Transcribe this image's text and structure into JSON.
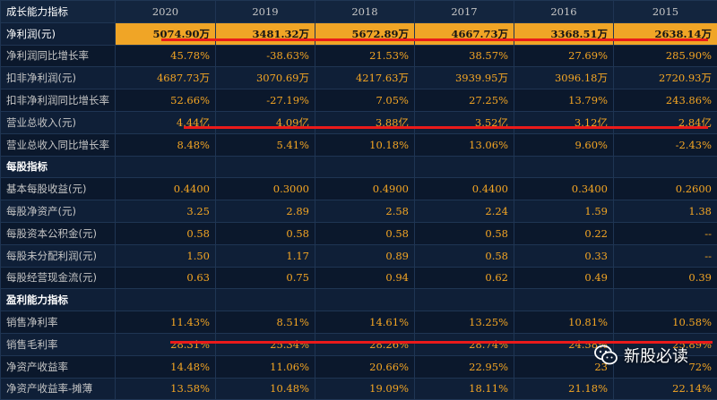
{
  "header": {
    "title": "成长能力指标",
    "years": [
      "2020",
      "2019",
      "2018",
      "2017",
      "2016",
      "2015"
    ]
  },
  "rows": [
    {
      "label": "净利润(元)",
      "values": [
        "5074.90万",
        "3481.32万",
        "5672.89万",
        "4667.73万",
        "3368.51万",
        "2638.14万"
      ],
      "type": "data",
      "highlight": true
    },
    {
      "label": "净利润同比增长率",
      "values": [
        "45.78%",
        "-38.63%",
        "21.53%",
        "38.57%",
        "27.69%",
        "285.90%"
      ],
      "type": "data"
    },
    {
      "label": "扣非净利润(元)",
      "values": [
        "4687.73万",
        "3070.69万",
        "4217.63万",
        "3939.95万",
        "3096.18万",
        "2720.93万"
      ],
      "type": "data"
    },
    {
      "label": "扣非净利润同比增长率",
      "values": [
        "52.66%",
        "-27.19%",
        "7.05%",
        "27.25%",
        "13.79%",
        "243.86%"
      ],
      "type": "data"
    },
    {
      "label": "营业总收入(元)",
      "values": [
        "4.44亿",
        "4.09亿",
        "3.88亿",
        "3.52亿",
        "3.12亿",
        "2.84亿"
      ],
      "type": "data"
    },
    {
      "label": "营业总收入同比增长率",
      "values": [
        "8.48%",
        "5.41%",
        "10.18%",
        "13.06%",
        "9.60%",
        "-2.43%"
      ],
      "type": "data"
    },
    {
      "label": "每股指标",
      "type": "section"
    },
    {
      "label": "基本每股收益(元)",
      "values": [
        "0.4400",
        "0.3000",
        "0.4900",
        "0.4400",
        "0.3400",
        "0.2600"
      ],
      "type": "data"
    },
    {
      "label": "每股净资产(元)",
      "values": [
        "3.25",
        "2.89",
        "2.58",
        "2.24",
        "1.59",
        "1.38"
      ],
      "type": "data"
    },
    {
      "label": "每股资本公积金(元)",
      "values": [
        "0.58",
        "0.58",
        "0.58",
        "0.58",
        "0.22",
        "--"
      ],
      "type": "data"
    },
    {
      "label": "每股未分配利润(元)",
      "values": [
        "1.50",
        "1.17",
        "0.89",
        "0.58",
        "0.33",
        "--"
      ],
      "type": "data"
    },
    {
      "label": "每股经营现金流(元)",
      "values": [
        "0.63",
        "0.75",
        "0.94",
        "0.62",
        "0.49",
        "0.39"
      ],
      "type": "data"
    },
    {
      "label": "盈利能力指标",
      "type": "section"
    },
    {
      "label": "销售净利率",
      "values": [
        "11.43%",
        "8.51%",
        "14.61%",
        "13.25%",
        "10.81%",
        "10.58%"
      ],
      "type": "data"
    },
    {
      "label": "销售毛利率",
      "values": [
        "28.31%",
        "25.34%",
        "28.26%",
        "28.74%",
        "24.58%",
        "25.89%"
      ],
      "type": "data"
    },
    {
      "label": "净资产收益率",
      "values": [
        "14.48%",
        "11.06%",
        "20.66%",
        "22.95%",
        "23",
        "72%"
      ],
      "type": "data"
    },
    {
      "label": "净资产收益率-摊薄",
      "values": [
        "13.58%",
        "10.48%",
        "19.09%",
        "18.11%",
        "21.18%",
        "22.14%"
      ],
      "type": "data"
    }
  ],
  "watermark": {
    "text": "新股必读",
    "icon": "wechat-icon"
  },
  "colors": {
    "background": "#0d1b30",
    "value_text": "#f5a623",
    "highlight_fill": "#f0a526",
    "annotation_line": "#ea1a1a"
  }
}
